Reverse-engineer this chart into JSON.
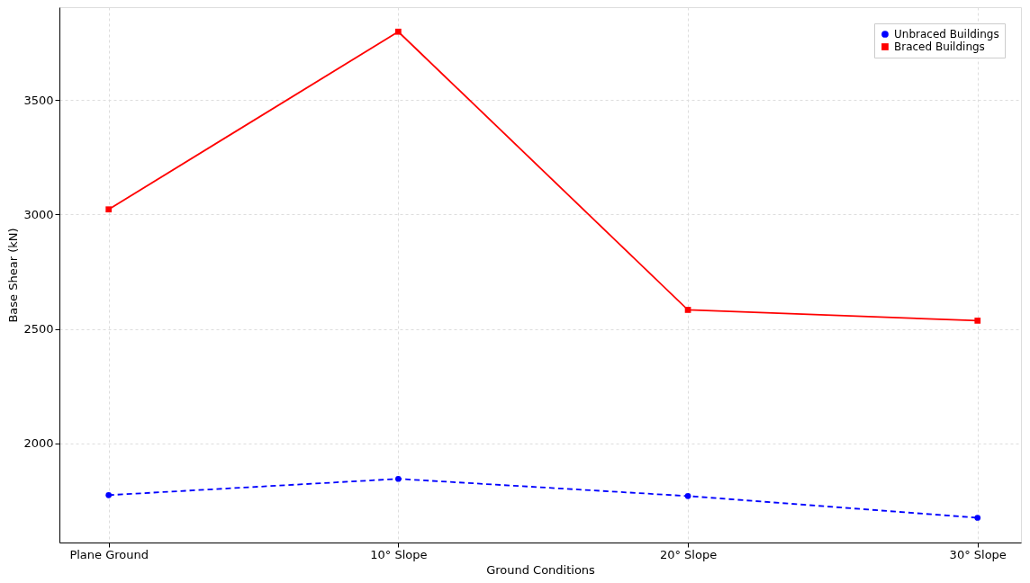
{
  "chart_data": {
    "type": "line",
    "xlabel": "Ground Conditions",
    "ylabel": "Base Shear (kN)",
    "categories": [
      "Plane Ground",
      "10° Slope",
      "20° Slope",
      "30° Slope"
    ],
    "series": [
      {
        "name": "Unbraced Buildings",
        "color": "#0000ff",
        "values": [
          1774,
          1845,
          1770,
          1675
        ],
        "marker": "circle",
        "line_style": "dashed"
      },
      {
        "name": "Braced Buildings",
        "color": "#ff0000",
        "values": [
          3022,
          3798,
          2583,
          2536
        ],
        "marker": "square",
        "line_style": "solid"
      }
    ],
    "ylim": [
      1567,
      3905
    ],
    "yticks": [
      2000,
      2500,
      3000,
      3500
    ],
    "grid": true,
    "legend": "top right"
  }
}
